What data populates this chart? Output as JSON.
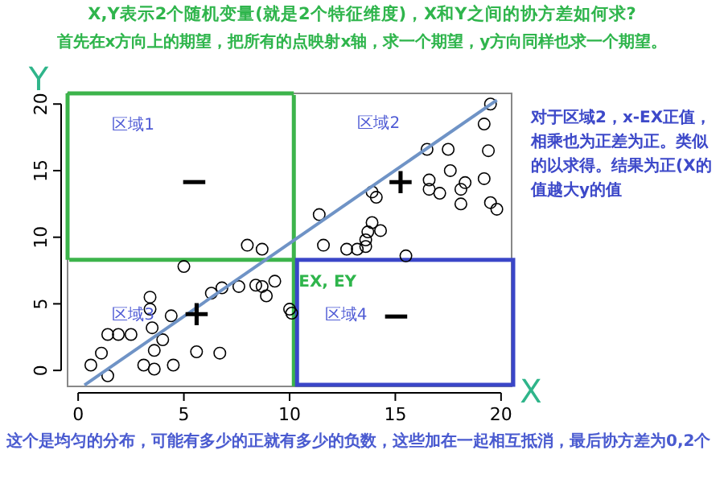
{
  "chart_data": {
    "type": "scatter",
    "title": "X,Y表示2个随机变量(就是2个特征维度)，X和Y之间的协方差如何求?",
    "subtitle": "首先在x方向上的期望，把所有的点映射x轴，求一个期望，y方向同样也求一个期望。",
    "xlabel": "X",
    "ylabel": "Y",
    "xlim": [
      -0.5,
      20.5
    ],
    "ylim": [
      -1.2,
      20.8
    ],
    "xticks": [
      0,
      5,
      10,
      15,
      20
    ],
    "yticks": [
      0,
      5,
      10,
      15,
      20
    ],
    "grid": false,
    "ref_lines": [
      {
        "axis": "x",
        "value": 10.2,
        "color": "#3cb44b"
      },
      {
        "axis": "y",
        "value": 8.3,
        "color": "#3cb44b"
      }
    ],
    "series": [
      {
        "type": "scatter",
        "marker": "circle",
        "color": "#000000",
        "x": [
          19.5,
          19.2,
          16.5,
          17.5,
          19.4,
          17.6,
          16.6,
          16.6,
          17.1,
          18.3,
          18.1,
          19.2,
          18.1,
          19.5,
          19.8,
          13.9,
          14.1,
          11.4,
          13.9,
          13.7,
          14.3,
          13.6,
          11.6,
          12.7,
          13.2,
          13.6,
          15.5,
          8.0,
          8.7,
          5.0,
          6.8,
          6.3,
          7.6,
          8.4,
          8.7,
          8.9,
          9.3,
          10.0,
          10.1,
          3.4,
          3.4,
          4.4,
          3.5,
          4.0,
          1.4,
          1.9,
          2.5,
          1.1,
          3.6,
          5.6,
          6.7,
          0.6,
          3.1,
          3.6,
          4.5,
          1.4
        ],
        "values": [
          20.0,
          18.5,
          16.6,
          16.6,
          16.5,
          15.0,
          14.3,
          13.6,
          13.3,
          14.1,
          13.6,
          14.4,
          12.5,
          12.6,
          12.1,
          13.4,
          13.0,
          11.7,
          11.1,
          10.4,
          10.5,
          9.8,
          9.4,
          9.1,
          9.1,
          9.3,
          8.6,
          9.4,
          9.1,
          7.8,
          6.2,
          5.8,
          6.3,
          6.4,
          6.3,
          5.6,
          6.7,
          4.6,
          4.3,
          5.5,
          4.6,
          4.1,
          3.2,
          2.3,
          2.7,
          2.7,
          2.7,
          1.3,
          1.5,
          1.4,
          1.3,
          0.4,
          0.4,
          0.1,
          0.4,
          -0.4
        ]
      },
      {
        "type": "line",
        "marker": "none",
        "color": "#6f93c6",
        "x": [
          0.3,
          19.8
        ],
        "values": [
          -1.1,
          20.3
        ]
      }
    ],
    "annotations": [
      "区域1",
      "−",
      "区域2",
      "+",
      "区域3",
      "+",
      "区域4",
      "−",
      "EX, EY",
      "对于区域2，x-EX正值，相乘也为正差为正。类似的以求得。结果为正(X的值越大y的值",
      "这个是均匀的分布，可能有多少的正就有多少的负数，这些加在一起相互抵消，最后协方差为0,2个"
    ]
  }
}
